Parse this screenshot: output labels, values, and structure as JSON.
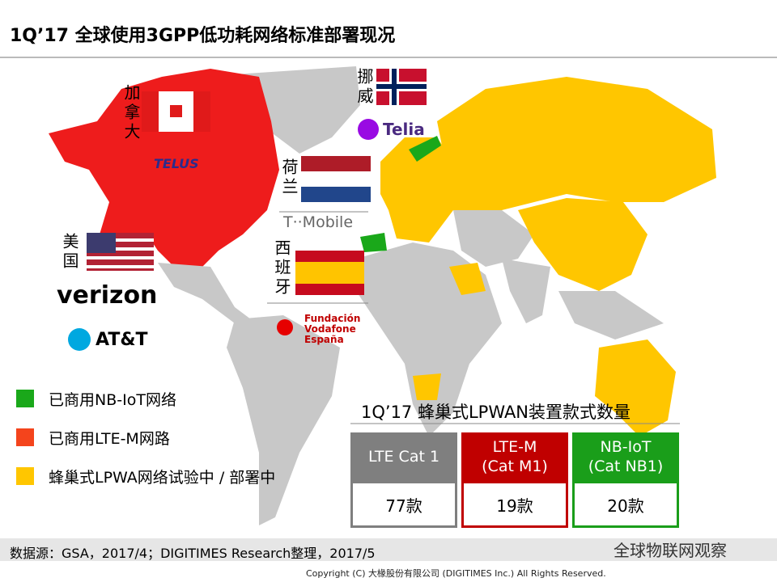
{
  "header": {
    "title": "1Q’17 全球使用3GPP低功耗网络标准部署现况"
  },
  "map_labels": [
    {
      "country": "加拿大",
      "operators": [
        "TELUS"
      ]
    },
    {
      "country": "挪威",
      "operators": [
        "Telia"
      ]
    },
    {
      "country": "荷兰",
      "operators": [
        "T··Mobile"
      ]
    },
    {
      "country": "美国",
      "operators": [
        "verizon",
        "AT&T"
      ]
    },
    {
      "country": "西班牙",
      "operators": [
        "Fundación\nVodafone\nEspaña"
      ]
    }
  ],
  "legend": [
    {
      "label": "已商用NB-IoT网络",
      "color": "#1aa81a"
    },
    {
      "label": "已商用LTE-M网路",
      "color": "#f4441c"
    },
    {
      "label": "蜂巢式LPWA网络试验中 / 部署中",
      "color": "#ffc600"
    }
  ],
  "table": {
    "title": "1Q’17 蜂巢式LPWAN装置款式数量",
    "columns": [
      {
        "name": "LTE Cat 1",
        "count": "77款",
        "color": "#7f7f7f"
      },
      {
        "name": "LTE-M\n(Cat M1)",
        "count": "19款",
        "color": "#c00000"
      },
      {
        "name": "NB-IoT\n(Cat NB1)",
        "count": "20款",
        "color": "#1a9e1a"
      }
    ]
  },
  "footer": {
    "source": "数据源：GSA，2017/4；DIGITIMES Research整理，2017/5",
    "watermark": "全球物联网观察",
    "copyright": "Copyright (C) 大椽股份有限公司 (DIGITIMES Inc.) All Rights Reserved."
  }
}
